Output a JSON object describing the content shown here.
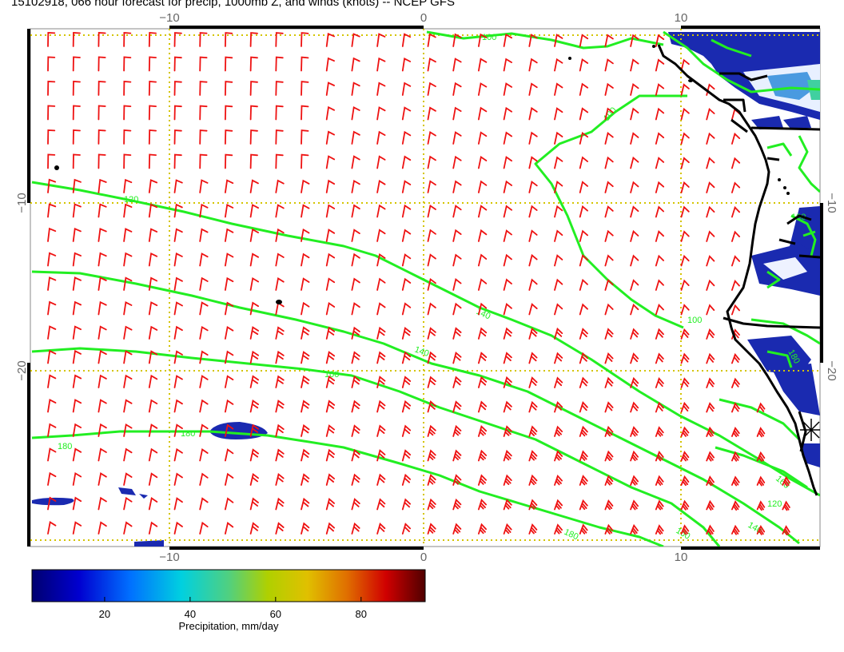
{
  "title": "15102918, 066 hour forecast for precip, 1000mb Z, and winds (knots) -- NCEP GFS",
  "map": {
    "lon_labels": [
      "−10",
      "0",
      "10"
    ],
    "lat_labels": [
      "−10",
      "−20"
    ],
    "gridline_color": "#d4c400",
    "contour_color": "#22ee22",
    "barb_color": "#ee1111",
    "coast_color": "#000000",
    "contour_labels": [
      "100",
      "120",
      "140",
      "160",
      "180"
    ]
  },
  "colorbar": {
    "ticks": [
      "20",
      "40",
      "60",
      "80"
    ],
    "tick_values": [
      20,
      40,
      60,
      80
    ],
    "range": [
      3,
      95
    ],
    "label": "Precipitation, mm/day",
    "colors": [
      "#000070",
      "#0000d0",
      "#0070ff",
      "#00d0e0",
      "#50d080",
      "#b0d000",
      "#e0c000",
      "#e07000",
      "#d00000",
      "#500000"
    ]
  }
}
